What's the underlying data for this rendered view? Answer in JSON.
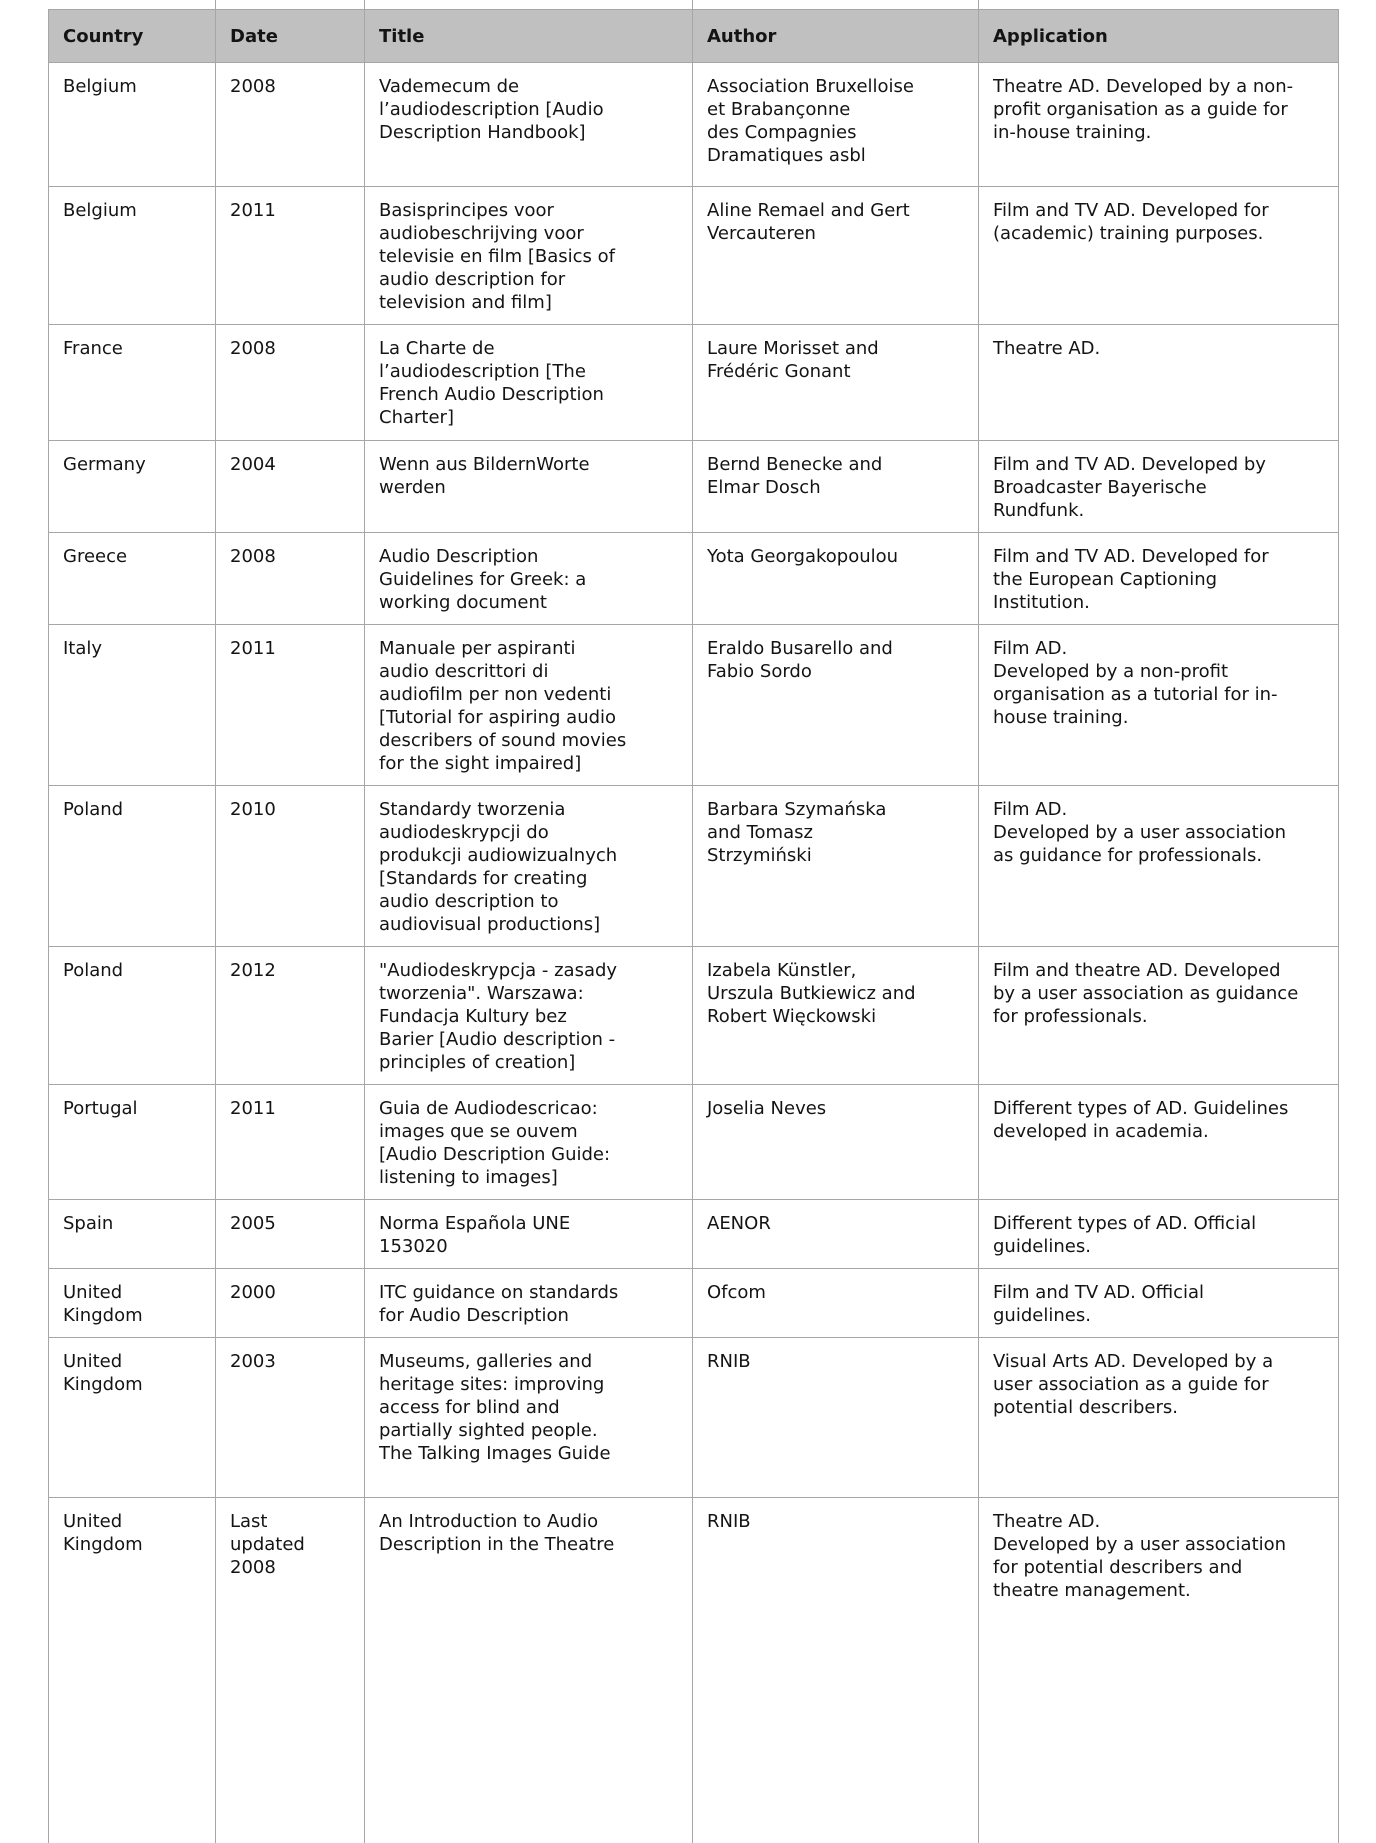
{
  "table": {
    "headers": [
      "Country",
      "Date",
      "Title",
      "Author",
      "Application"
    ],
    "rows": [
      {
        "country": "Belgium",
        "date": "2008",
        "title": "Vademecum de\nl’audiodescription [Audio\nDescription Handbook]",
        "author": "Association Bruxelloise\net Brabançonne\ndes Compagnies\nDramatiques asbl",
        "application": "Theatre AD. Developed by a non-\nprofit organisation as a guide for\nin-house training."
      },
      {
        "country": "Belgium",
        "date": "2011",
        "title": "Basisprincipes voor\naudiobeschrijving voor\ntelevisie en film [Basics of\naudio description for\ntelevision and film]",
        "author": "Aline Remael and Gert\nVercauteren",
        "application": "Film and TV AD. Developed for\n(academic) training purposes."
      },
      {
        "country": "France",
        "date": "2008",
        "title": "La Charte de\nl’audiodescription [The\nFrench Audio Description\nCharter]",
        "author": "Laure Morisset and\nFrédéric Gonant",
        "application": "Theatre AD."
      },
      {
        "country": "Germany",
        "date": "2004",
        "title": "Wenn aus BildernWorte\nwerden",
        "author": "Bernd Benecke and\nElmar Dosch",
        "application": "Film and TV AD. Developed by\nBroadcaster Bayerische\nRundfunk."
      },
      {
        "country": "Greece",
        "date": "2008",
        "title": "Audio Description\nGuidelines for Greek: a\nworking document",
        "author": "Yota Georgakopoulou",
        "application": "Film and TV AD. Developed for\nthe European Captioning\nInstitution."
      },
      {
        "country": "Italy",
        "date": "2011",
        "title": "Manuale per aspiranti\naudio descrittori di\naudiofilm per non vedenti\n[Tutorial for aspiring audio\ndescribers of sound movies\nfor the sight impaired]",
        "author": "Eraldo Busarello and\nFabio Sordo",
        "application": "Film AD.\nDeveloped by a non-profit\norganisation as a tutorial for in-\nhouse training."
      },
      {
        "country": "Poland",
        "date": "2010",
        "title": "Standardy tworzenia\naudiodeskrypcji do\nprodukcji audiowizualnych\n[Standards for creating\naudio description to\naudiovisual productions]",
        "author": "Barbara Szymańska\nand Tomasz\nStrzymiński",
        "application": "Film AD.\nDeveloped by a user association\nas guidance for professionals."
      },
      {
        "country": "Poland",
        "date": "2012",
        "title": "\"Audiodeskrypcja - zasady\ntworzenia\". Warszawa:\nFundacja Kultury bez\nBarier [Audio description -\nprinciples of creation]",
        "author": "Izabela Künstler,\nUrszula Butkiewicz and\nRobert Więckowski",
        "application": "Film and theatre AD. Developed\nby a user association as guidance\nfor professionals."
      },
      {
        "country": "Portugal",
        "date": "2011",
        "title": "Guia de Audiodescricao:\nimages que se ouvem\n[Audio Description Guide:\nlistening to images]",
        "author": "Joselia Neves",
        "application": "Different types of AD. Guidelines\ndeveloped in academia."
      },
      {
        "country": "Spain",
        "date": "2005",
        "title": "Norma Española UNE\n153020",
        "author": "AENOR",
        "application": "Different types of AD. Official\nguidelines."
      },
      {
        "country": "United\nKingdom",
        "date": "2000",
        "title": "ITC guidance on standards\nfor Audio Description",
        "author": "Ofcom",
        "application": "Film and TV AD. Official\nguidelines."
      },
      {
        "country": "United\nKingdom",
        "date": "2003",
        "title": "Museums, galleries and\nheritage sites: improving\naccess for blind and\npartially sighted people.\nThe Talking Images Guide",
        "author": "RNIB",
        "application": "Visual Arts AD. Developed by a\nuser association as a guide for\npotential describers."
      },
      {
        "country": "United\nKingdom",
        "date": "Last\nupdated\n2008",
        "title": "An Introduction to Audio\nDescription in the Theatre",
        "author": "RNIB",
        "application": "Theatre AD.\nDeveloped by a user association\nfor potential describers and\ntheatre management."
      }
    ]
  }
}
